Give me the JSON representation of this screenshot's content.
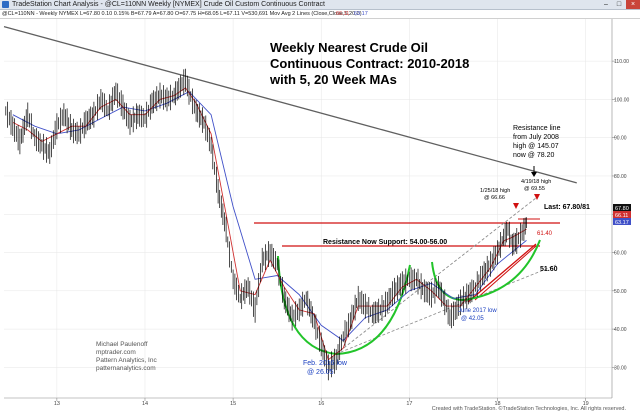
{
  "window": {
    "app_title": "TradeStation Chart Analysis - @CL=110NN Weekly [NYMEX] Crude Oil Custom Continuous Contract",
    "minimize": "–",
    "maximize": "□",
    "close": "×"
  },
  "infobar": {
    "symbol_text": "@CL=110NN - Weekly NYMEX  L=67.80  0.10  0.15%  B=67.79  A=67.80  O=67.75  H=68.05  L=67.11  V=530,691  Mov Avg 2 Lines (Close,Close,5,20,0)",
    "ma1_value": "66.11",
    "ma2_value": "63.17"
  },
  "annotations": {
    "title_line1": "Weekly Nearest Crude Oil",
    "title_line2": "Continuous Contract: 2010-2018",
    "title_line3": "with 5, 20 Week MAs",
    "resistance_line_1": "Resistance line",
    "resistance_line_2": "from July 2008",
    "resistance_line_3": "high @ 145.07",
    "resistance_line_4": "now @ 78.20",
    "high_2018_1": "4/19/18 high",
    "high_2018_2": "@ 69.55",
    "high_jan_1": "1/25/18 high",
    "high_jan_2": "@ 66.66",
    "last_label": "Last: 67.80/81",
    "level_6140": "61.40",
    "support_label": "Resistance Now Support: 54.00-56.00",
    "level_5160": "51.60",
    "june_low_1": "June 2017 low",
    "june_low_2": "@ 42.05",
    "feb_low_1": "Feb. 2016 low",
    "feb_low_2": "@ 26.05",
    "author_1": "Michael Paulenoff",
    "author_2": "mptrader.com",
    "author_3": "Pattern Analytics, Inc",
    "author_4": "patternanalytics.com"
  },
  "price_tags": {
    "last": "67.80",
    "ma1": "66.11",
    "ma2": "63.17"
  },
  "footer": {
    "text": "Created with TradeStation. ©TradeStation Technologies, Inc. All rights reserved."
  },
  "colors": {
    "price": "#000000",
    "ma5": "#d03030",
    "ma20": "#4050c8",
    "trendline": "#606060",
    "resistance": "#d01010",
    "arc": "#22c42a",
    "channel": "#8c8c8c",
    "annotation_blue": "#1a3fc0"
  },
  "chart_data": {
    "type": "line",
    "title": "Weekly Nearest Crude Oil Continuous Contract: 2010-2018 with 5, 20 Week MAs",
    "x_tick_labels": [
      "13",
      "14",
      "15",
      "16",
      "17",
      "18",
      "19"
    ],
    "x_ticks": [
      2013.0,
      2014.0,
      2015.0,
      2016.0,
      2017.0,
      2018.0,
      2019.0
    ],
    "xlim": [
      2012.4,
      2019.3
    ],
    "y_tick_labels": [
      "110.00",
      "100.00",
      "90.00",
      "80.00",
      "70.00",
      "60.00",
      "50.00",
      "40.00",
      "30.00"
    ],
    "y_ticks": [
      110,
      100,
      90,
      80,
      70,
      60,
      50,
      40,
      30
    ],
    "ylim": [
      22,
      121
    ],
    "series": [
      {
        "name": "@CL=110NN",
        "x": [
          2012.42,
          2012.5,
          2012.58,
          2012.67,
          2012.75,
          2012.83,
          2012.92,
          2013.0,
          2013.08,
          2013.17,
          2013.25,
          2013.33,
          2013.42,
          2013.5,
          2013.58,
          2013.67,
          2013.75,
          2013.83,
          2013.92,
          2014.0,
          2014.08,
          2014.17,
          2014.25,
          2014.33,
          2014.42,
          2014.46,
          2014.5,
          2014.58,
          2014.67,
          2014.75,
          2014.83,
          2014.92,
          2015.0,
          2015.08,
          2015.17,
          2015.25,
          2015.33,
          2015.42,
          2015.5,
          2015.58,
          2015.67,
          2015.75,
          2015.83,
          2015.92,
          2016.0,
          2016.08,
          2016.17,
          2016.25,
          2016.33,
          2016.42,
          2016.5,
          2016.58,
          2016.67,
          2016.75,
          2016.83,
          2016.92,
          2017.0,
          2017.08,
          2017.17,
          2017.25,
          2017.33,
          2017.42,
          2017.46,
          2017.5,
          2017.58,
          2017.67,
          2017.75,
          2017.83,
          2017.92,
          2018.0,
          2018.07,
          2018.12,
          2018.17,
          2018.22,
          2018.3,
          2018.33
        ],
        "values": [
          97,
          93,
          89,
          96,
          90,
          88,
          86,
          93,
          96,
          92,
          91,
          94,
          96,
          100,
          97,
          102,
          98,
          94,
          96,
          95,
          99,
          101,
          100,
          101,
          104,
          105,
          102,
          97,
          94,
          88,
          76,
          66,
          53,
          48,
          51,
          45,
          58,
          60,
          57,
          48,
          43,
          45,
          48,
          42,
          36,
          30,
          32,
          38,
          42,
          48,
          46,
          44,
          45,
          47,
          50,
          52,
          53,
          53,
          50,
          49,
          51,
          46,
          43,
          44,
          47,
          49,
          51,
          54,
          57,
          60,
          64,
          66,
          62,
          63,
          66,
          67.8
        ]
      },
      {
        "name": "5-week MA",
        "x": [
          2012.5,
          2012.67,
          2012.83,
          2013.0,
          2013.17,
          2013.33,
          2013.5,
          2013.67,
          2013.83,
          2014.0,
          2014.17,
          2014.33,
          2014.46,
          2014.58,
          2014.75,
          2014.92,
          2015.08,
          2015.25,
          2015.42,
          2015.58,
          2015.75,
          2015.92,
          2016.08,
          2016.25,
          2016.42,
          2016.58,
          2016.75,
          2016.92,
          2017.08,
          2017.25,
          2017.42,
          2017.58,
          2017.75,
          2017.92,
          2018.07,
          2018.17,
          2018.33
        ],
        "values": [
          94,
          92,
          89,
          91,
          93,
          93,
          98,
          100,
          96,
          96,
          100,
          101,
          103,
          99,
          91,
          70,
          50,
          49,
          58,
          51,
          45,
          44,
          32,
          35,
          46,
          46,
          46,
          51,
          53,
          50,
          46,
          46,
          51,
          56,
          63,
          64,
          66.11
        ]
      },
      {
        "name": "20-week MA",
        "x": [
          2012.5,
          2012.75,
          2013.0,
          2013.25,
          2013.5,
          2013.75,
          2014.0,
          2014.25,
          2014.5,
          2014.75,
          2015.0,
          2015.25,
          2015.5,
          2015.75,
          2016.0,
          2016.25,
          2016.5,
          2016.75,
          2017.0,
          2017.25,
          2017.5,
          2017.75,
          2018.0,
          2018.33
        ],
        "values": [
          96,
          93,
          91,
          92,
          95,
          98,
          97,
          99,
          102,
          96,
          72,
          53,
          54,
          49,
          41,
          37,
          43,
          45,
          50,
          52,
          48,
          49,
          57,
          63.17
        ]
      }
    ],
    "resistance_line": {
      "x": [
        2012.4,
        2018.9
      ],
      "values": [
        119,
        78.2
      ]
    },
    "horizontal_levels": [
      61.4,
      56.0,
      54.0
    ]
  }
}
